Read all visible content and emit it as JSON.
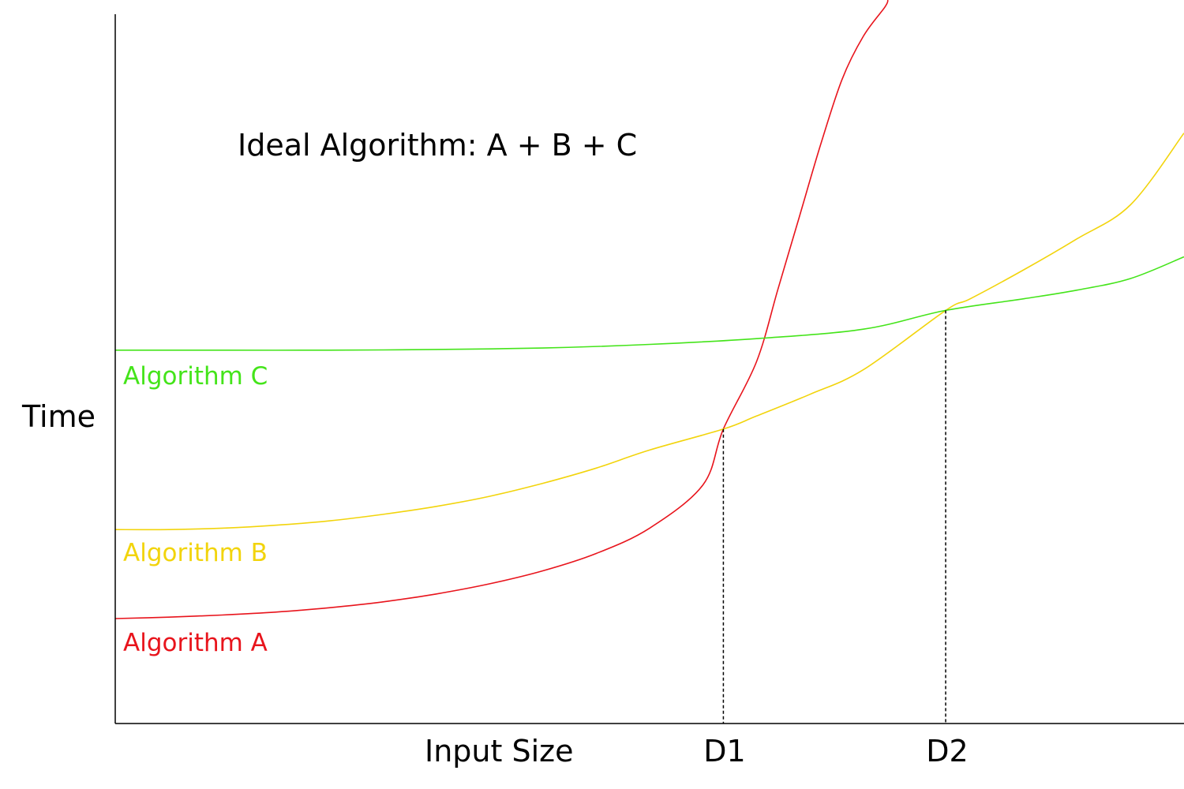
{
  "chart_data": {
    "type": "line",
    "title": "Ideal Algorithm: A + B + C",
    "xlabel": "Input Size",
    "ylabel": "Time",
    "xlim": [
      0,
      1
    ],
    "ylim": [
      0,
      1
    ],
    "grid": false,
    "x_tick_labels": [
      {
        "label": "D1",
        "x": 0.569
      },
      {
        "label": "D2",
        "x": 0.777
      }
    ],
    "series": [
      {
        "name": "Algorithm A",
        "color": "#e8141c",
        "x": [
          0,
          0.05,
          0.1,
          0.15,
          0.2,
          0.25,
          0.3,
          0.35,
          0.4,
          0.45,
          0.5,
          0.55,
          0.569,
          0.6,
          0.62,
          0.64,
          0.66,
          0.68,
          0.7,
          0.72,
          0.723
        ],
        "y": [
          0.145,
          0.147,
          0.15,
          0.154,
          0.16,
          0.168,
          0.179,
          0.193,
          0.211,
          0.235,
          0.27,
          0.33,
          0.407,
          0.5,
          0.6,
          0.7,
          0.8,
          0.89,
          0.95,
          0.99,
          1.0
        ]
      },
      {
        "name": "Algorithm B",
        "color": "#f2d40c",
        "x": [
          0,
          0.05,
          0.1,
          0.15,
          0.2,
          0.25,
          0.3,
          0.35,
          0.4,
          0.45,
          0.5,
          0.569,
          0.6,
          0.65,
          0.7,
          0.777,
          0.8,
          0.85,
          0.9,
          0.95,
          1.0
        ],
        "y": [
          0.268,
          0.268,
          0.27,
          0.274,
          0.28,
          0.289,
          0.3,
          0.314,
          0.332,
          0.353,
          0.378,
          0.407,
          0.425,
          0.455,
          0.489,
          0.571,
          0.587,
          0.627,
          0.67,
          0.717,
          0.816
        ]
      },
      {
        "name": "Algorithm C",
        "color": "#44e41a",
        "x": [
          0,
          0.1,
          0.2,
          0.3,
          0.4,
          0.5,
          0.6,
          0.7,
          0.777,
          0.85,
          0.9,
          0.95,
          1.0
        ],
        "y": [
          0.516,
          0.516,
          0.516,
          0.517,
          0.519,
          0.524,
          0.532,
          0.545,
          0.571,
          0.587,
          0.599,
          0.615,
          0.645
        ]
      }
    ]
  }
}
